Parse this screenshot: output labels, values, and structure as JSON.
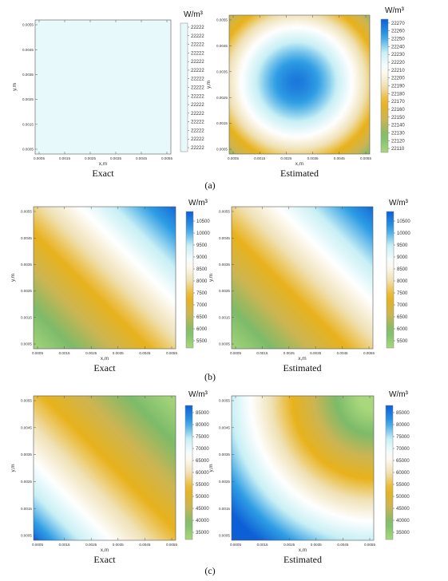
{
  "chart_data": [
    {
      "type": "heatmap",
      "panel": "(a)",
      "title": "Exact",
      "xlabel": "x,m",
      "ylabel": "y,m",
      "unit": "W/m³",
      "xticks": [
        "0.0005",
        "0.0015",
        "0.0025",
        "0.0035",
        "0.0045",
        "0.0055"
      ],
      "yticks": [
        "0.0055",
        "0.0045",
        "0.0035",
        "0.0025",
        "0.0015",
        "0.0005"
      ],
      "colorbar_ticks": [
        "22222",
        "22222",
        "22222",
        "22222",
        "22222",
        "22222",
        "22222",
        "22222",
        "22222",
        "22222",
        "22222",
        "22222",
        "22222",
        "22222",
        "22222"
      ],
      "field": "uniform",
      "value": 22222
    },
    {
      "type": "heatmap",
      "panel": "(a)",
      "title": "Estimated",
      "xlabel": "x,m",
      "ylabel": "y,m",
      "unit": "W/m³",
      "xticks": [
        "0.0005",
        "0.0015",
        "0.0025",
        "0.0035",
        "0.0045",
        "0.0055"
      ],
      "yticks": [
        "0.0055",
        "0.0045",
        "0.0035",
        "0.0025",
        "0.0015",
        "0.0005"
      ],
      "colorbar_ticks": [
        "22270",
        "22260",
        "22250",
        "22240",
        "22230",
        "22220",
        "22210",
        "22200",
        "22190",
        "22180",
        "22170",
        "22160",
        "22150",
        "22140",
        "22130",
        "22120",
        "22110"
      ],
      "field": "radial",
      "range": [
        22105,
        22275
      ]
    },
    {
      "type": "heatmap",
      "panel": "(b)",
      "title": "Exact",
      "xlabel": "x,m",
      "ylabel": "y,m",
      "unit": "W/m³",
      "xticks": [
        "0.0005",
        "0.0015",
        "0.0025",
        "0.0035",
        "0.0045",
        "0.0055"
      ],
      "yticks": [
        "0.0055",
        "0.0045",
        "0.0035",
        "0.0025",
        "0.0015",
        "0.0005"
      ],
      "colorbar_ticks": [
        "10500",
        "10000",
        "9500",
        "9000",
        "8500",
        "8000",
        "7500",
        "7000",
        "6500",
        "6000",
        "5500"
      ],
      "field": "diagonal-b",
      "range": [
        5200,
        10900
      ]
    },
    {
      "type": "heatmap",
      "panel": "(b)",
      "title": "Estimated",
      "xlabel": "x,m",
      "ylabel": "y,m",
      "unit": "W/m³",
      "xticks": [
        "0.0005",
        "0.0015",
        "0.0025",
        "0.0035",
        "0.0045",
        "0.0055"
      ],
      "yticks": [
        "0.0055",
        "0.0045",
        "0.0035",
        "0.0025",
        "0.0015",
        "0.0005"
      ],
      "colorbar_ticks": [
        "10500",
        "10000",
        "9500",
        "9000",
        "8500",
        "8000",
        "7500",
        "7000",
        "6500",
        "6000",
        "5500"
      ],
      "field": "diagonal-b",
      "range": [
        5200,
        10900
      ]
    },
    {
      "type": "heatmap",
      "panel": "(c)",
      "title": "Exact",
      "xlabel": "x,m",
      "ylabel": "y,m",
      "unit": "W/m³",
      "xticks": [
        "0.0005",
        "0.0015",
        "0.0025",
        "0.0035",
        "0.0045",
        "0.0055"
      ],
      "yticks": [
        "0.0055",
        "0.0045",
        "0.0035",
        "0.0025",
        "0.0015",
        "0.0005"
      ],
      "colorbar_ticks": [
        "85000",
        "80000",
        "75000",
        "70000",
        "65000",
        "60000",
        "55000",
        "50000",
        "45000",
        "40000",
        "35000"
      ],
      "field": "diagonal-c",
      "range": [
        32000,
        88000
      ]
    },
    {
      "type": "heatmap",
      "panel": "(c)",
      "title": "Estimated",
      "xlabel": "x,m",
      "ylabel": "y,m",
      "unit": "W/m³",
      "xticks": [
        "0.0005",
        "0.0015",
        "0.0025",
        "0.0035",
        "0.0045",
        "0.0055"
      ],
      "yticks": [
        "0.0055",
        "0.0045",
        "0.0035",
        "0.0025",
        "0.0015",
        "0.0005"
      ],
      "colorbar_ticks": [
        "85000",
        "80000",
        "75000",
        "70000",
        "65000",
        "60000",
        "55000",
        "50000",
        "45000",
        "40000",
        "35000"
      ],
      "field": "diagonal-c-est",
      "range": [
        32000,
        88000
      ]
    }
  ],
  "panel_labels": [
    "(a)",
    "(b)",
    "(c)"
  ],
  "colors": {
    "ramp": [
      "#a8d77c",
      "#7dbb6a",
      "#cdb552",
      "#e8b21b",
      "#f0e2b6",
      "#ffffff",
      "#c8f0f5",
      "#2f9ee4",
      "#0d5fd6"
    ]
  }
}
